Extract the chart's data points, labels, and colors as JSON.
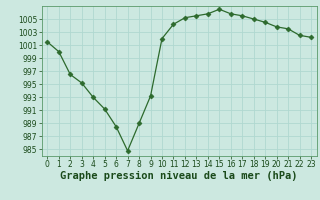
{
  "x": [
    0,
    1,
    2,
    3,
    4,
    5,
    6,
    7,
    8,
    9,
    10,
    11,
    12,
    13,
    14,
    15,
    16,
    17,
    18,
    19,
    20,
    21,
    22,
    23
  ],
  "y": [
    1001.5,
    1000.0,
    996.5,
    995.2,
    993.0,
    991.2,
    988.5,
    984.8,
    989.0,
    993.2,
    1002.0,
    1004.2,
    1005.2,
    1005.5,
    1005.8,
    1006.5,
    1005.8,
    1005.5,
    1005.0,
    1004.5,
    1003.8,
    1003.5,
    1002.5,
    1002.2
  ],
  "line_color": "#2d6a2d",
  "marker": "D",
  "marker_size": 2.5,
  "bg_color": "#cce8e0",
  "grid_color": "#b0d8d0",
  "xlabel": "Graphe pression niveau de la mer (hPa)",
  "xlabel_fontsize": 7.5,
  "xlabel_color": "#1a4a1a",
  "tick_color": "#1a4a1a",
  "tick_fontsize": 5.5,
  "ylim": [
    984,
    1007
  ],
  "yticks": [
    985,
    987,
    989,
    991,
    993,
    995,
    997,
    999,
    1001,
    1003,
    1005
  ],
  "xticks": [
    0,
    1,
    2,
    3,
    4,
    5,
    6,
    7,
    8,
    9,
    10,
    11,
    12,
    13,
    14,
    15,
    16,
    17,
    18,
    19,
    20,
    21,
    22,
    23
  ],
  "xlim": [
    -0.5,
    23.5
  ],
  "spine_color": "#5a9a6a"
}
